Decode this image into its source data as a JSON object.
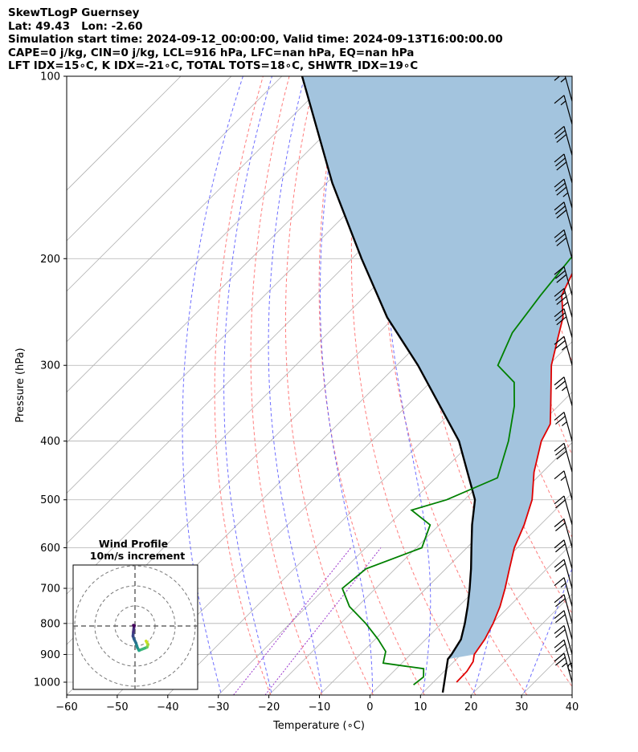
{
  "header": {
    "line1": "SkewTLogP Guernsey",
    "line2": "Lat: 49.43   Lon: -2.60",
    "line3": "Simulation start time: 2024-09-12_00:00:00, Valid time: 2024-09-13T16:00:00.00",
    "line4": "CAPE=0 j/kg, CIN=0 j/kg, LCL=916 hPa, LFC=nan hPa, EQ=nan hPa",
    "line5": "LFT IDX=15∘C, K IDX=-21∘C, TOTAL TOTS=18∘C, SHWTR_IDX=19∘C"
  },
  "inset": {
    "title": "Wind Profile",
    "subtitle": "10m/s increment"
  },
  "chart_data": {
    "type": "line",
    "subtype": "skew-t log-p",
    "xlabel": "Temperature (∘C)",
    "ylabel": "Pressure (hPa)",
    "xlim": [
      -60,
      40
    ],
    "ylim": [
      1050,
      100
    ],
    "yscale": "log",
    "x_ticks": [
      "−60",
      "−50",
      "−40",
      "−30",
      "−20",
      "−10",
      "0",
      "10",
      "20",
      "30",
      "40"
    ],
    "y_ticks": [
      "100",
      "200",
      "300",
      "400",
      "500",
      "600",
      "700",
      "800",
      "900",
      "1000"
    ],
    "grid": true,
    "colors": {
      "temperature": "#e00000",
      "dewpoint": "#008000",
      "parcel": "#000000",
      "cape_fill": "#a3c4de",
      "dry_adiabat": "#ff6666",
      "moist_adiabat": "#5555ff",
      "mixing_ratio": "#9933cc"
    },
    "series": [
      {
        "key": "temperature",
        "points": [
          [
            1000,
            14.6
          ],
          [
            960,
            14.5
          ],
          [
            925,
            13.8
          ],
          [
            900,
            12.6
          ],
          [
            850,
            11.7
          ],
          [
            800,
            10.2
          ],
          [
            750,
            8.2
          ],
          [
            700,
            5.6
          ],
          [
            650,
            2.6
          ],
          [
            600,
            -0.6
          ],
          [
            550,
            -3.2
          ],
          [
            500,
            -6.6
          ],
          [
            450,
            -11.7
          ],
          [
            400,
            -16.4
          ],
          [
            375,
            -18.0
          ],
          [
            350,
            -21.5
          ],
          [
            300,
            -29.4
          ],
          [
            270,
            -33.6
          ],
          [
            250,
            -36.6
          ],
          [
            230,
            -41.2
          ],
          [
            200,
            -45.0
          ],
          [
            185,
            -45.8
          ],
          [
            170,
            -44.6
          ],
          [
            150,
            -47.4
          ],
          [
            130,
            -50.8
          ],
          [
            115,
            -52.3
          ],
          [
            100,
            -54.8
          ]
        ]
      },
      {
        "key": "dewpoint",
        "points": [
          [
            1010,
            6.6
          ],
          [
            980,
            7.0
          ],
          [
            950,
            5.4
          ],
          [
            930,
            -3.7
          ],
          [
            890,
            -5.5
          ],
          [
            850,
            -9.4
          ],
          [
            800,
            -15.0
          ],
          [
            750,
            -21.6
          ],
          [
            700,
            -26.6
          ],
          [
            650,
            -25.8
          ],
          [
            600,
            -18.9
          ],
          [
            550,
            -21.8
          ],
          [
            520,
            -28.4
          ],
          [
            500,
            -23.5
          ],
          [
            460,
            -17.8
          ],
          [
            400,
            -22.9
          ],
          [
            350,
            -28.7
          ],
          [
            320,
            -33.4
          ],
          [
            300,
            -40.0
          ],
          [
            265,
            -43.6
          ],
          [
            230,
            -45.4
          ],
          [
            200,
            -46.8
          ],
          [
            175,
            -46.5
          ],
          [
            160,
            -48.2
          ],
          [
            145,
            -50.6
          ],
          [
            130,
            -58.8
          ],
          [
            120,
            -65.8
          ],
          [
            100,
            -67.0
          ]
        ]
      },
      {
        "key": "parcel",
        "points": [
          [
            1040,
            13.9
          ],
          [
            916,
            8.3
          ],
          [
            900,
            8.1
          ],
          [
            850,
            7.0
          ],
          [
            800,
            4.6
          ],
          [
            750,
            1.8
          ],
          [
            700,
            -1.4
          ],
          [
            650,
            -5.0
          ],
          [
            600,
            -9.1
          ],
          [
            550,
            -13.5
          ],
          [
            500,
            -17.9
          ],
          [
            400,
            -32.7
          ],
          [
            300,
            -55.8
          ],
          [
            250,
            -71.4
          ],
          [
            200,
            -88.1
          ],
          [
            150,
            -108.9
          ],
          [
            100,
            -136.0
          ]
        ]
      }
    ],
    "wind_barbs": [
      {
        "p": 1000,
        "speed": 25
      },
      {
        "p": 950,
        "speed": 20
      },
      {
        "p": 900,
        "speed": 20
      },
      {
        "p": 850,
        "speed": 20
      },
      {
        "p": 800,
        "speed": 20
      },
      {
        "p": 750,
        "speed": 15
      },
      {
        "p": 700,
        "speed": 20
      },
      {
        "p": 650,
        "speed": 20
      },
      {
        "p": 600,
        "speed": 20
      },
      {
        "p": 550,
        "speed": 20
      },
      {
        "p": 500,
        "speed": 15
      },
      {
        "p": 450,
        "speed": 30
      },
      {
        "p": 400,
        "speed": 25
      },
      {
        "p": 350,
        "speed": 25
      },
      {
        "p": 300,
        "speed": 25
      },
      {
        "p": 270,
        "speed": 30
      },
      {
        "p": 250,
        "speed": 35
      },
      {
        "p": 230,
        "speed": 30
      },
      {
        "p": 200,
        "speed": 30
      },
      {
        "p": 180,
        "speed": 30
      },
      {
        "p": 165,
        "speed": 35
      },
      {
        "p": 150,
        "speed": 30
      },
      {
        "p": 135,
        "speed": 30
      },
      {
        "p": 120,
        "speed": 15
      },
      {
        "p": 110,
        "speed": 15
      },
      {
        "p": 100,
        "speed": 15
      }
    ],
    "wind_profile_hodograph": {
      "ring_increment_ms": 10,
      "points": [
        [
          5.5,
          -7.5
        ],
        [
          6.5,
          -9.2
        ],
        [
          6.0,
          -10.6
        ],
        [
          5.0,
          -11.0
        ],
        [
          2.0,
          -12.2
        ],
        [
          1.2,
          -10.8
        ],
        [
          0.5,
          -8.5
        ],
        [
          -0.5,
          -6.5
        ],
        [
          -1.0,
          -5.0
        ],
        [
          -0.8,
          -3.0
        ],
        [
          -0.5,
          -0.5
        ],
        [
          -0.3,
          0.2
        ],
        [
          -0.8,
          0.4
        ]
      ]
    }
  }
}
